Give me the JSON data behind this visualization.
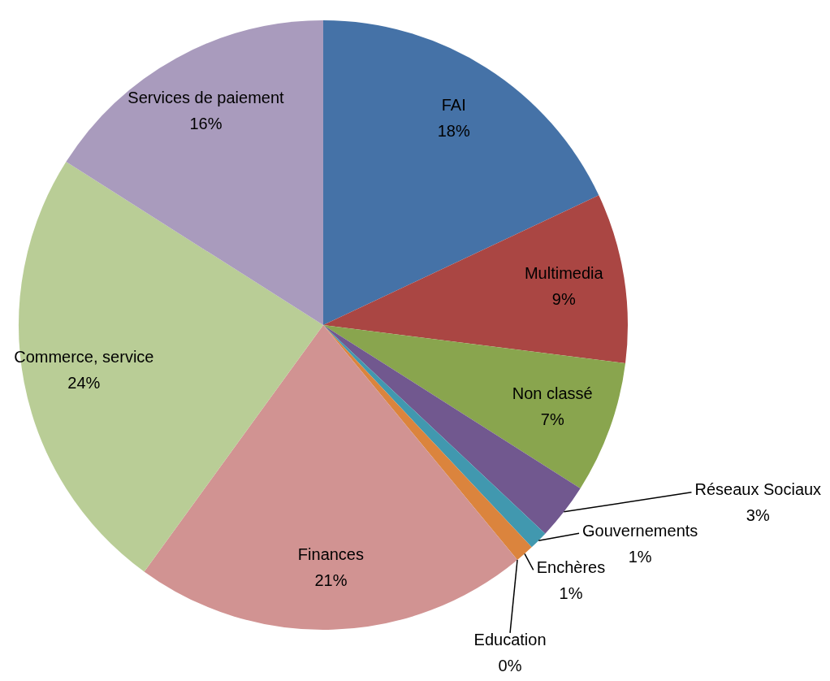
{
  "chart_data": {
    "type": "pie",
    "categories": [
      "FAI",
      "Multimedia",
      "Non classé",
      "Réseaux Sociaux",
      "Gouvernements",
      "Enchères",
      "Education",
      "Finances",
      "Commerce, service",
      "Services de paiement"
    ],
    "values": [
      18,
      9,
      7,
      3,
      1,
      1,
      0,
      21,
      24,
      16
    ],
    "value_labels": [
      "18%",
      "9%",
      "7%",
      "3%",
      "1%",
      "1%",
      "0%",
      "21%",
      "24%",
      "16%"
    ],
    "colors": [
      "#4572a7",
      "#aa4643",
      "#89a54e",
      "#71588f",
      "#4198af",
      "#db843d",
      "#93a9cf",
      "#d19392",
      "#b9cd96",
      "#a99bbd"
    ],
    "legend": false
  }
}
